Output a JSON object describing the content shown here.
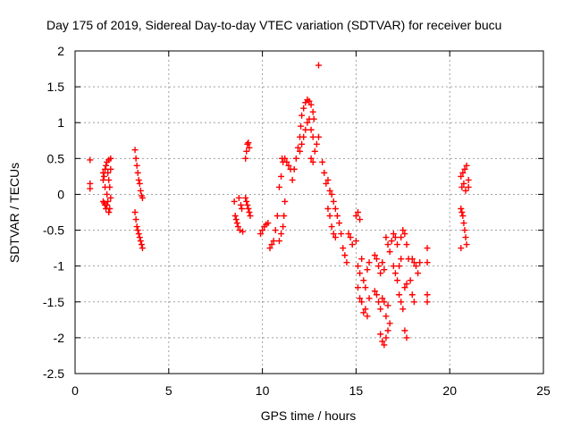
{
  "chart_data": {
    "type": "scatter",
    "title": "Day 175 of 2019, Sidereal Day-to-day VTEC variation (SDTVAR) for receiver bucu",
    "xlabel": "GPS time / hours",
    "ylabel": "SDTVAR / TECUs",
    "xlim": [
      0,
      25
    ],
    "ylim": [
      -2.5,
      2
    ],
    "xticks": [
      0,
      5,
      10,
      15,
      20,
      25
    ],
    "yticks": [
      -2.5,
      -2,
      -1.5,
      -1,
      -0.5,
      0,
      0.5,
      1,
      1.5,
      2
    ],
    "xtick_labels": [
      "0",
      "5",
      "10",
      "15",
      "20",
      "25"
    ],
    "ytick_labels": [
      "-2.5",
      "-2",
      "-1.5",
      "-1",
      "-0.5",
      "0",
      "0.5",
      "1",
      "1.5",
      "2"
    ],
    "grid": true,
    "marker": "+",
    "colors": {
      "series": "#ff0000",
      "grid": "#a0a0a0",
      "axis": "#000000"
    },
    "series": [
      {
        "name": "SDTVAR",
        "points": [
          [
            0.8,
            0.48
          ],
          [
            0.8,
            0.15
          ],
          [
            0.8,
            0.08
          ],
          [
            1.5,
            0.3
          ],
          [
            1.5,
            0.2
          ],
          [
            1.55,
            0.25
          ],
          [
            1.6,
            0.35
          ],
          [
            1.6,
            0.1
          ],
          [
            1.65,
            0.4
          ],
          [
            1.7,
            0.45
          ],
          [
            1.7,
            0.0
          ],
          [
            1.75,
            0.3
          ],
          [
            1.8,
            0.48
          ],
          [
            1.8,
            0.2
          ],
          [
            1.85,
            0.1
          ],
          [
            1.9,
            0.5
          ],
          [
            1.9,
            0.35
          ],
          [
            1.5,
            -0.1
          ],
          [
            1.55,
            -0.12
          ],
          [
            1.6,
            -0.15
          ],
          [
            1.65,
            -0.2
          ],
          [
            1.7,
            -0.15
          ],
          [
            1.75,
            -0.1
          ],
          [
            1.8,
            -0.25
          ],
          [
            1.85,
            -0.2
          ],
          [
            1.9,
            -0.05
          ],
          [
            3.2,
            0.62
          ],
          [
            3.25,
            0.5
          ],
          [
            3.3,
            0.4
          ],
          [
            3.35,
            0.3
          ],
          [
            3.4,
            0.2
          ],
          [
            3.45,
            0.15
          ],
          [
            3.5,
            0.05
          ],
          [
            3.55,
            -0.02
          ],
          [
            3.6,
            -0.05
          ],
          [
            3.2,
            -0.25
          ],
          [
            3.25,
            -0.35
          ],
          [
            3.3,
            -0.45
          ],
          [
            3.35,
            -0.5
          ],
          [
            3.4,
            -0.55
          ],
          [
            3.45,
            -0.6
          ],
          [
            3.5,
            -0.65
          ],
          [
            3.55,
            -0.7
          ],
          [
            3.6,
            -0.75
          ],
          [
            8.5,
            -0.1
          ],
          [
            8.55,
            -0.3
          ],
          [
            8.6,
            -0.35
          ],
          [
            8.65,
            -0.4
          ],
          [
            8.7,
            -0.45
          ],
          [
            8.75,
            -0.05
          ],
          [
            8.8,
            -0.5
          ],
          [
            8.85,
            -0.15
          ],
          [
            8.9,
            -0.2
          ],
          [
            8.95,
            -0.52
          ],
          [
            9.1,
            0.5
          ],
          [
            9.15,
            0.6
          ],
          [
            9.2,
            0.7
          ],
          [
            9.25,
            0.72
          ],
          [
            9.3,
            0.65
          ],
          [
            9.1,
            -0.05
          ],
          [
            9.15,
            -0.1
          ],
          [
            9.2,
            -0.15
          ],
          [
            9.25,
            -0.2
          ],
          [
            9.3,
            -0.25
          ],
          [
            9.35,
            -0.3
          ],
          [
            9.9,
            -0.55
          ],
          [
            10.0,
            -0.5
          ],
          [
            10.1,
            -0.45
          ],
          [
            10.2,
            -0.42
          ],
          [
            10.3,
            -0.4
          ],
          [
            10.4,
            -0.75
          ],
          [
            10.5,
            -0.7
          ],
          [
            10.6,
            -0.65
          ],
          [
            10.7,
            -0.5
          ],
          [
            10.8,
            -0.3
          ],
          [
            10.9,
            -0.65
          ],
          [
            11.0,
            -0.55
          ],
          [
            11.1,
            -0.45
          ],
          [
            11.15,
            -0.3
          ],
          [
            11.2,
            -0.1
          ],
          [
            10.9,
            0.1
          ],
          [
            11.0,
            0.25
          ],
          [
            11.05,
            0.5
          ],
          [
            11.1,
            0.45
          ],
          [
            11.2,
            0.5
          ],
          [
            11.3,
            0.45
          ],
          [
            11.4,
            0.4
          ],
          [
            11.5,
            0.35
          ],
          [
            11.6,
            0.2
          ],
          [
            11.7,
            0.35
          ],
          [
            11.8,
            0.5
          ],
          [
            11.9,
            0.65
          ],
          [
            12.0,
            0.8
          ],
          [
            12.05,
            0.95
          ],
          [
            12.1,
            1.1
          ],
          [
            12.2,
            1.2
          ],
          [
            12.3,
            1.28
          ],
          [
            12.4,
            1.32
          ],
          [
            12.5,
            1.3
          ],
          [
            12.6,
            1.25
          ],
          [
            12.7,
            1.15
          ],
          [
            12.75,
            1.05
          ],
          [
            12.0,
            0.6
          ],
          [
            12.1,
            0.7
          ],
          [
            12.2,
            0.8
          ],
          [
            12.3,
            0.9
          ],
          [
            12.4,
            1.0
          ],
          [
            12.5,
            1.05
          ],
          [
            12.6,
            0.9
          ],
          [
            12.7,
            0.8
          ],
          [
            12.6,
            0.5
          ],
          [
            12.7,
            0.45
          ],
          [
            12.8,
            0.6
          ],
          [
            12.9,
            0.7
          ],
          [
            13.0,
            0.8
          ],
          [
            13.0,
            1.8
          ],
          [
            13.2,
            0.45
          ],
          [
            13.3,
            0.3
          ],
          [
            13.4,
            0.15
          ],
          [
            13.5,
            0.2
          ],
          [
            13.6,
            0.05
          ],
          [
            13.7,
            0.0
          ],
          [
            13.8,
            -0.1
          ],
          [
            13.9,
            -0.2
          ],
          [
            14.0,
            -0.3
          ],
          [
            14.1,
            -0.4
          ],
          [
            14.2,
            -0.55
          ],
          [
            14.3,
            -0.75
          ],
          [
            14.4,
            -0.85
          ],
          [
            14.5,
            -0.95
          ],
          [
            13.5,
            -0.2
          ],
          [
            13.6,
            -0.3
          ],
          [
            13.7,
            -0.45
          ],
          [
            13.8,
            -0.55
          ],
          [
            13.9,
            -0.6
          ],
          [
            14.6,
            -0.55
          ],
          [
            14.7,
            -0.6
          ],
          [
            14.8,
            -0.7
          ],
          [
            15.0,
            -0.65
          ],
          [
            15.0,
            -0.3
          ],
          [
            15.1,
            -0.25
          ],
          [
            15.2,
            -0.35
          ],
          [
            15.1,
            -1.0
          ],
          [
            15.2,
            -1.1
          ],
          [
            15.3,
            -0.9
          ],
          [
            15.4,
            -1.2
          ],
          [
            15.5,
            -1.3
          ],
          [
            15.6,
            -1.05
          ],
          [
            15.7,
            -0.95
          ],
          [
            15.1,
            -1.3
          ],
          [
            15.2,
            -1.45
          ],
          [
            15.3,
            -1.5
          ],
          [
            15.4,
            -1.65
          ],
          [
            15.5,
            -1.6
          ],
          [
            15.6,
            -1.7
          ],
          [
            15.7,
            -1.45
          ],
          [
            16.0,
            -0.85
          ],
          [
            16.1,
            -0.9
          ],
          [
            16.2,
            -1.0
          ],
          [
            16.3,
            -1.1
          ],
          [
            16.4,
            -0.95
          ],
          [
            16.5,
            -1.05
          ],
          [
            16.0,
            -1.35
          ],
          [
            16.1,
            -1.4
          ],
          [
            16.2,
            -1.5
          ],
          [
            16.3,
            -1.6
          ],
          [
            16.4,
            -1.45
          ],
          [
            16.5,
            -1.5
          ],
          [
            16.6,
            -1.7
          ],
          [
            16.7,
            -1.55
          ],
          [
            16.3,
            -1.95
          ],
          [
            16.4,
            -2.05
          ],
          [
            16.5,
            -2.1
          ],
          [
            16.6,
            -2.0
          ],
          [
            16.7,
            -1.9
          ],
          [
            16.8,
            -1.8
          ],
          [
            16.6,
            -0.6
          ],
          [
            16.7,
            -0.7
          ],
          [
            16.8,
            -0.8
          ],
          [
            16.9,
            -0.65
          ],
          [
            17.0,
            -0.55
          ],
          [
            17.1,
            -0.6
          ],
          [
            17.2,
            -0.7
          ],
          [
            17.0,
            -1.0
          ],
          [
            17.1,
            -1.1
          ],
          [
            17.2,
            -1.2
          ],
          [
            17.3,
            -1.0
          ],
          [
            17.4,
            -0.9
          ],
          [
            17.4,
            -0.6
          ],
          [
            17.5,
            -0.5
          ],
          [
            17.6,
            -0.55
          ],
          [
            17.7,
            -0.7
          ],
          [
            17.8,
            -0.9
          ],
          [
            17.9,
            -1.2
          ],
          [
            18.0,
            -1.4
          ],
          [
            18.1,
            -1.5
          ],
          [
            17.3,
            -1.4
          ],
          [
            17.4,
            -1.5
          ],
          [
            17.5,
            -1.6
          ],
          [
            17.6,
            -1.3
          ],
          [
            17.7,
            -1.25
          ],
          [
            17.6,
            -1.9
          ],
          [
            17.7,
            -2.0
          ],
          [
            18.0,
            -0.9
          ],
          [
            18.1,
            -0.95
          ],
          [
            18.2,
            -1.0
          ],
          [
            18.3,
            -1.1
          ],
          [
            18.4,
            -0.95
          ],
          [
            18.8,
            -0.75
          ],
          [
            18.8,
            -0.95
          ],
          [
            18.8,
            -1.4
          ],
          [
            18.8,
            -1.5
          ],
          [
            20.6,
            0.25
          ],
          [
            20.7,
            0.3
          ],
          [
            20.8,
            0.35
          ],
          [
            20.9,
            0.4
          ],
          [
            21.0,
            0.2
          ],
          [
            20.65,
            0.1
          ],
          [
            20.75,
            0.15
          ],
          [
            20.85,
            0.05
          ],
          [
            21.0,
            0.1
          ],
          [
            20.6,
            -0.2
          ],
          [
            20.65,
            -0.25
          ],
          [
            20.7,
            -0.3
          ],
          [
            20.75,
            -0.4
          ],
          [
            20.8,
            -0.5
          ],
          [
            20.85,
            -0.6
          ],
          [
            20.9,
            -0.7
          ],
          [
            20.6,
            -0.75
          ]
        ]
      }
    ]
  }
}
